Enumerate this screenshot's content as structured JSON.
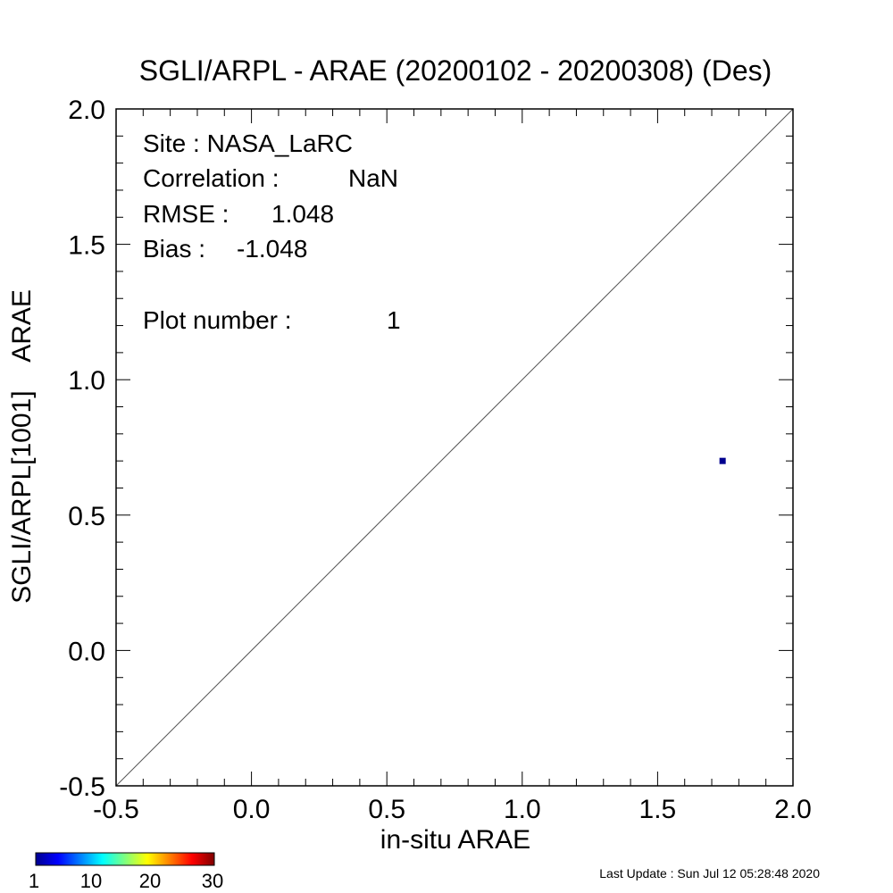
{
  "chart_data": {
    "type": "scatter",
    "title": "SGLI/ARPL - ARAE (20200102 - 20200308) (Des)",
    "xlabel": "in-situ ARAE",
    "ylabel": "SGLI/ARPL[1001]    ARAE",
    "xlim": [
      -0.5,
      2.0
    ],
    "ylim": [
      -0.5,
      2.0
    ],
    "x_ticks": [
      "-0.5",
      "0.0",
      "0.5",
      "1.0",
      "1.5",
      "2.0"
    ],
    "y_ticks": [
      "-0.5",
      "0.0",
      "0.5",
      "1.0",
      "1.5",
      "2.0"
    ],
    "one_to_one_line": true,
    "points": [
      {
        "x": 1.74,
        "y": 0.7,
        "count": 1,
        "color": "#00008f"
      }
    ],
    "stats": [
      {
        "label": "Site : NASA_LaRC",
        "value": ""
      },
      {
        "label": "Correlation :",
        "value": "NaN"
      },
      {
        "label": "RMSE :",
        "value": "1.048"
      },
      {
        "label": "Bias :",
        "value": "-1.048"
      },
      {
        "label": "Plot number :",
        "value": "1"
      }
    ],
    "colorbar": {
      "ticks": [
        "1",
        "10",
        "20",
        "30"
      ],
      "min": 1,
      "max": 30,
      "colormap": "jet"
    },
    "footer": "Last Update : Sun Jul 12 05:28:48 2020"
  }
}
